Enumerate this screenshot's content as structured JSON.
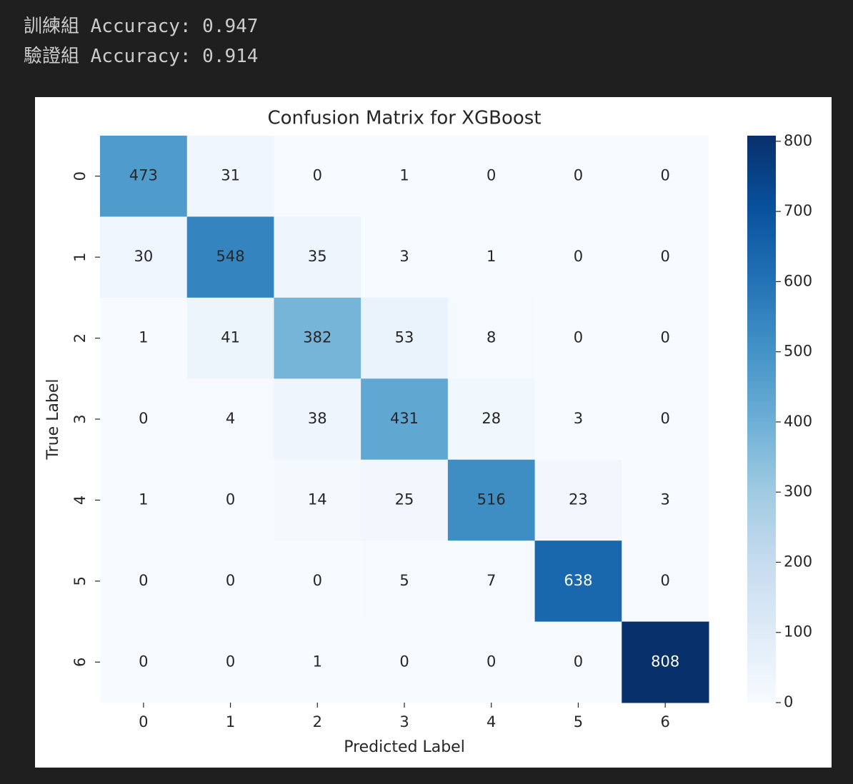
{
  "output": {
    "lines": [
      "訓練組 Accuracy: 0.947",
      "驗證組 Accuracy: 0.914"
    ]
  },
  "chart_data": {
    "type": "heatmap",
    "title": "Confusion Matrix for XGBoost",
    "xlabel": "Predicted Label",
    "ylabel": "True Label",
    "x_categories": [
      "0",
      "1",
      "2",
      "3",
      "4",
      "5",
      "6"
    ],
    "y_categories": [
      "0",
      "1",
      "2",
      "3",
      "4",
      "5",
      "6"
    ],
    "values": [
      [
        473,
        31,
        0,
        1,
        0,
        0,
        0
      ],
      [
        30,
        548,
        35,
        3,
        1,
        0,
        0
      ],
      [
        1,
        41,
        382,
        53,
        8,
        0,
        0
      ],
      [
        0,
        4,
        38,
        431,
        28,
        3,
        0
      ],
      [
        1,
        0,
        14,
        25,
        516,
        23,
        3
      ],
      [
        0,
        0,
        0,
        5,
        7,
        638,
        0
      ],
      [
        0,
        0,
        1,
        0,
        0,
        0,
        808
      ]
    ],
    "zlim": [
      0,
      808
    ],
    "zticks": [
      0,
      100,
      200,
      300,
      400,
      500,
      600,
      700,
      800
    ],
    "colors": [
      "#f7fbff",
      "#deebf7",
      "#c6dbef",
      "#9ecae1",
      "#6baed6",
      "#4292c6",
      "#2171b5",
      "#08519c",
      "#08306b"
    ]
  }
}
